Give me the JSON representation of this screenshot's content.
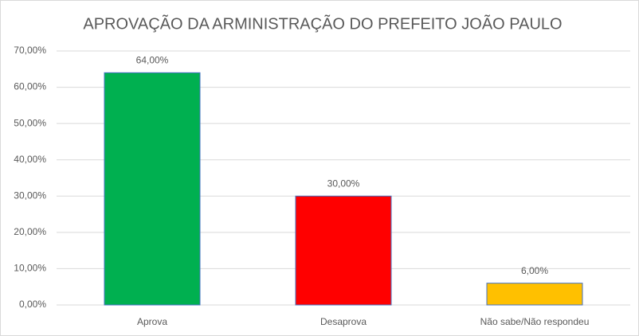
{
  "chart_data": {
    "type": "bar",
    "title": "APROVAÇÃO DA ARMINISTRAÇÃO DO PREFEITO JOÃO PAULO",
    "categories": [
      "Aprova",
      "Desaprova",
      "Não sabe/Não respondeu"
    ],
    "values": [
      64,
      30,
      6
    ],
    "value_labels": [
      "64,00%",
      "30,00%",
      "6,00%"
    ],
    "colors": [
      "#00b050",
      "#ff0000",
      "#ffc000"
    ],
    "ylim": [
      0,
      70
    ],
    "yticks": [
      {
        "value": 0,
        "label": "0,00%"
      },
      {
        "value": 10,
        "label": "10,00%"
      },
      {
        "value": 20,
        "label": "20,00%"
      },
      {
        "value": 30,
        "label": "30,00%"
      },
      {
        "value": 40,
        "label": "40,00%"
      },
      {
        "value": 50,
        "label": "50,00%"
      },
      {
        "value": 60,
        "label": "60,00%"
      },
      {
        "value": 70,
        "label": "70,00%"
      }
    ],
    "grid": true
  }
}
